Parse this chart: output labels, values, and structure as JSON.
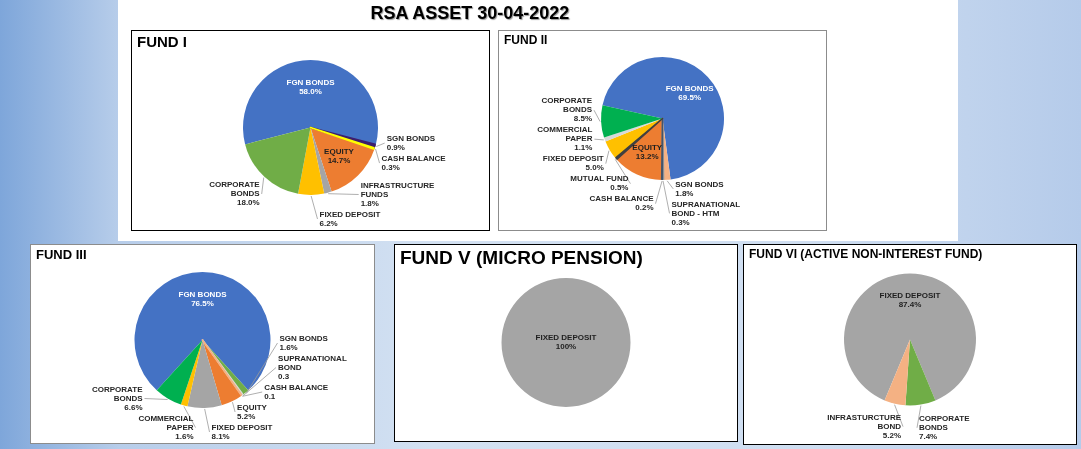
{
  "chart_data": [
    {
      "type": "other",
      "title": "RSA ASSET 30-04-2022"
    },
    {
      "type": "pie",
      "title": "FUND I",
      "categories": [
        "FGN BONDS",
        "SGN BONDS",
        "CASH BALANCE",
        "EQUITY",
        "INFRASTRUCTURE FUNDS",
        "FIXED DEPOSIT",
        "CORPORATE BONDS"
      ],
      "values": [
        58.0,
        0.9,
        0.3,
        14.7,
        1.8,
        6.2,
        18.0
      ],
      "colors": [
        "#4472c4",
        "#3d1e6e",
        "#ffff00",
        "#ed7d31",
        "#a5a5a5",
        "#ffc000",
        "#70ad47"
      ],
      "value_labels": [
        "58.0%",
        "0.9%",
        "0.3%",
        "14.7%",
        "1.8%",
        "6.2%",
        "18.0%"
      ]
    },
    {
      "type": "pie",
      "title": "FUND II",
      "categories": [
        "FGN BONDS",
        "SGN BONDS",
        "SUPRANATIONAL BOND - HTM",
        "CASH BALANCE",
        "EQUITY",
        "MUTUAL FUND",
        "FIXED DEPOSIT",
        "COMMERCIAL PAPER",
        "CORPORATE BONDS"
      ],
      "values": [
        69.5,
        1.8,
        0.3,
        0.2,
        13.2,
        0.5,
        5.0,
        1.1,
        8.5
      ],
      "colors": [
        "#4472c4",
        "#f4b183",
        "#a5a5a5",
        "#44546a",
        "#ed7d31",
        "#404040",
        "#ffc000",
        "#d9d9d9",
        "#00b050"
      ],
      "value_labels": [
        "69.5%",
        "1.8%",
        "0.3%",
        "0.2%",
        "13.2%",
        "0.5%",
        "5.0%",
        "1.1%",
        "8.5%"
      ]
    },
    {
      "type": "pie",
      "title": "FUND III",
      "categories": [
        "FGN BONDS",
        "SGN BONDS",
        "SUPRANATIONAL BOND",
        "CASH BALANCE",
        "EQUITY",
        "FIXED DEPOSIT",
        "COMMERCIAL PAPER",
        "CORPORATE BONDS"
      ],
      "values": [
        76.5,
        1.6,
        0.3,
        0.1,
        5.2,
        8.1,
        1.6,
        6.6
      ],
      "colors": [
        "#4472c4",
        "#70ad47",
        "#d9d9d9",
        "#f4b183",
        "#ed7d31",
        "#a5a5a5",
        "#ffc000",
        "#00b050"
      ],
      "value_labels": [
        "76.5%",
        "1.6%",
        "0.3",
        "0.1",
        "5.2%",
        "8.1%",
        "1.6%",
        "6.6%"
      ]
    },
    {
      "type": "pie",
      "title": "FUND V (MICRO PENSION)",
      "categories": [
        "FIXED DEPOSIT"
      ],
      "values": [
        100
      ],
      "colors": [
        "#a5a5a5"
      ],
      "value_labels": [
        "100%"
      ]
    },
    {
      "type": "pie",
      "title": "FUND VI (ACTIVE NON-INTEREST FUND)",
      "categories": [
        "FIXED DEPOSIT",
        "CORPORATE BONDS",
        "INFRASTURCTURE BOND"
      ],
      "values": [
        87.4,
        7.4,
        5.2
      ],
      "colors": [
        "#a5a5a5",
        "#70ad47",
        "#f4b183"
      ],
      "value_labels": [
        "87.4%",
        "7.4%",
        "5.2%"
      ]
    }
  ]
}
